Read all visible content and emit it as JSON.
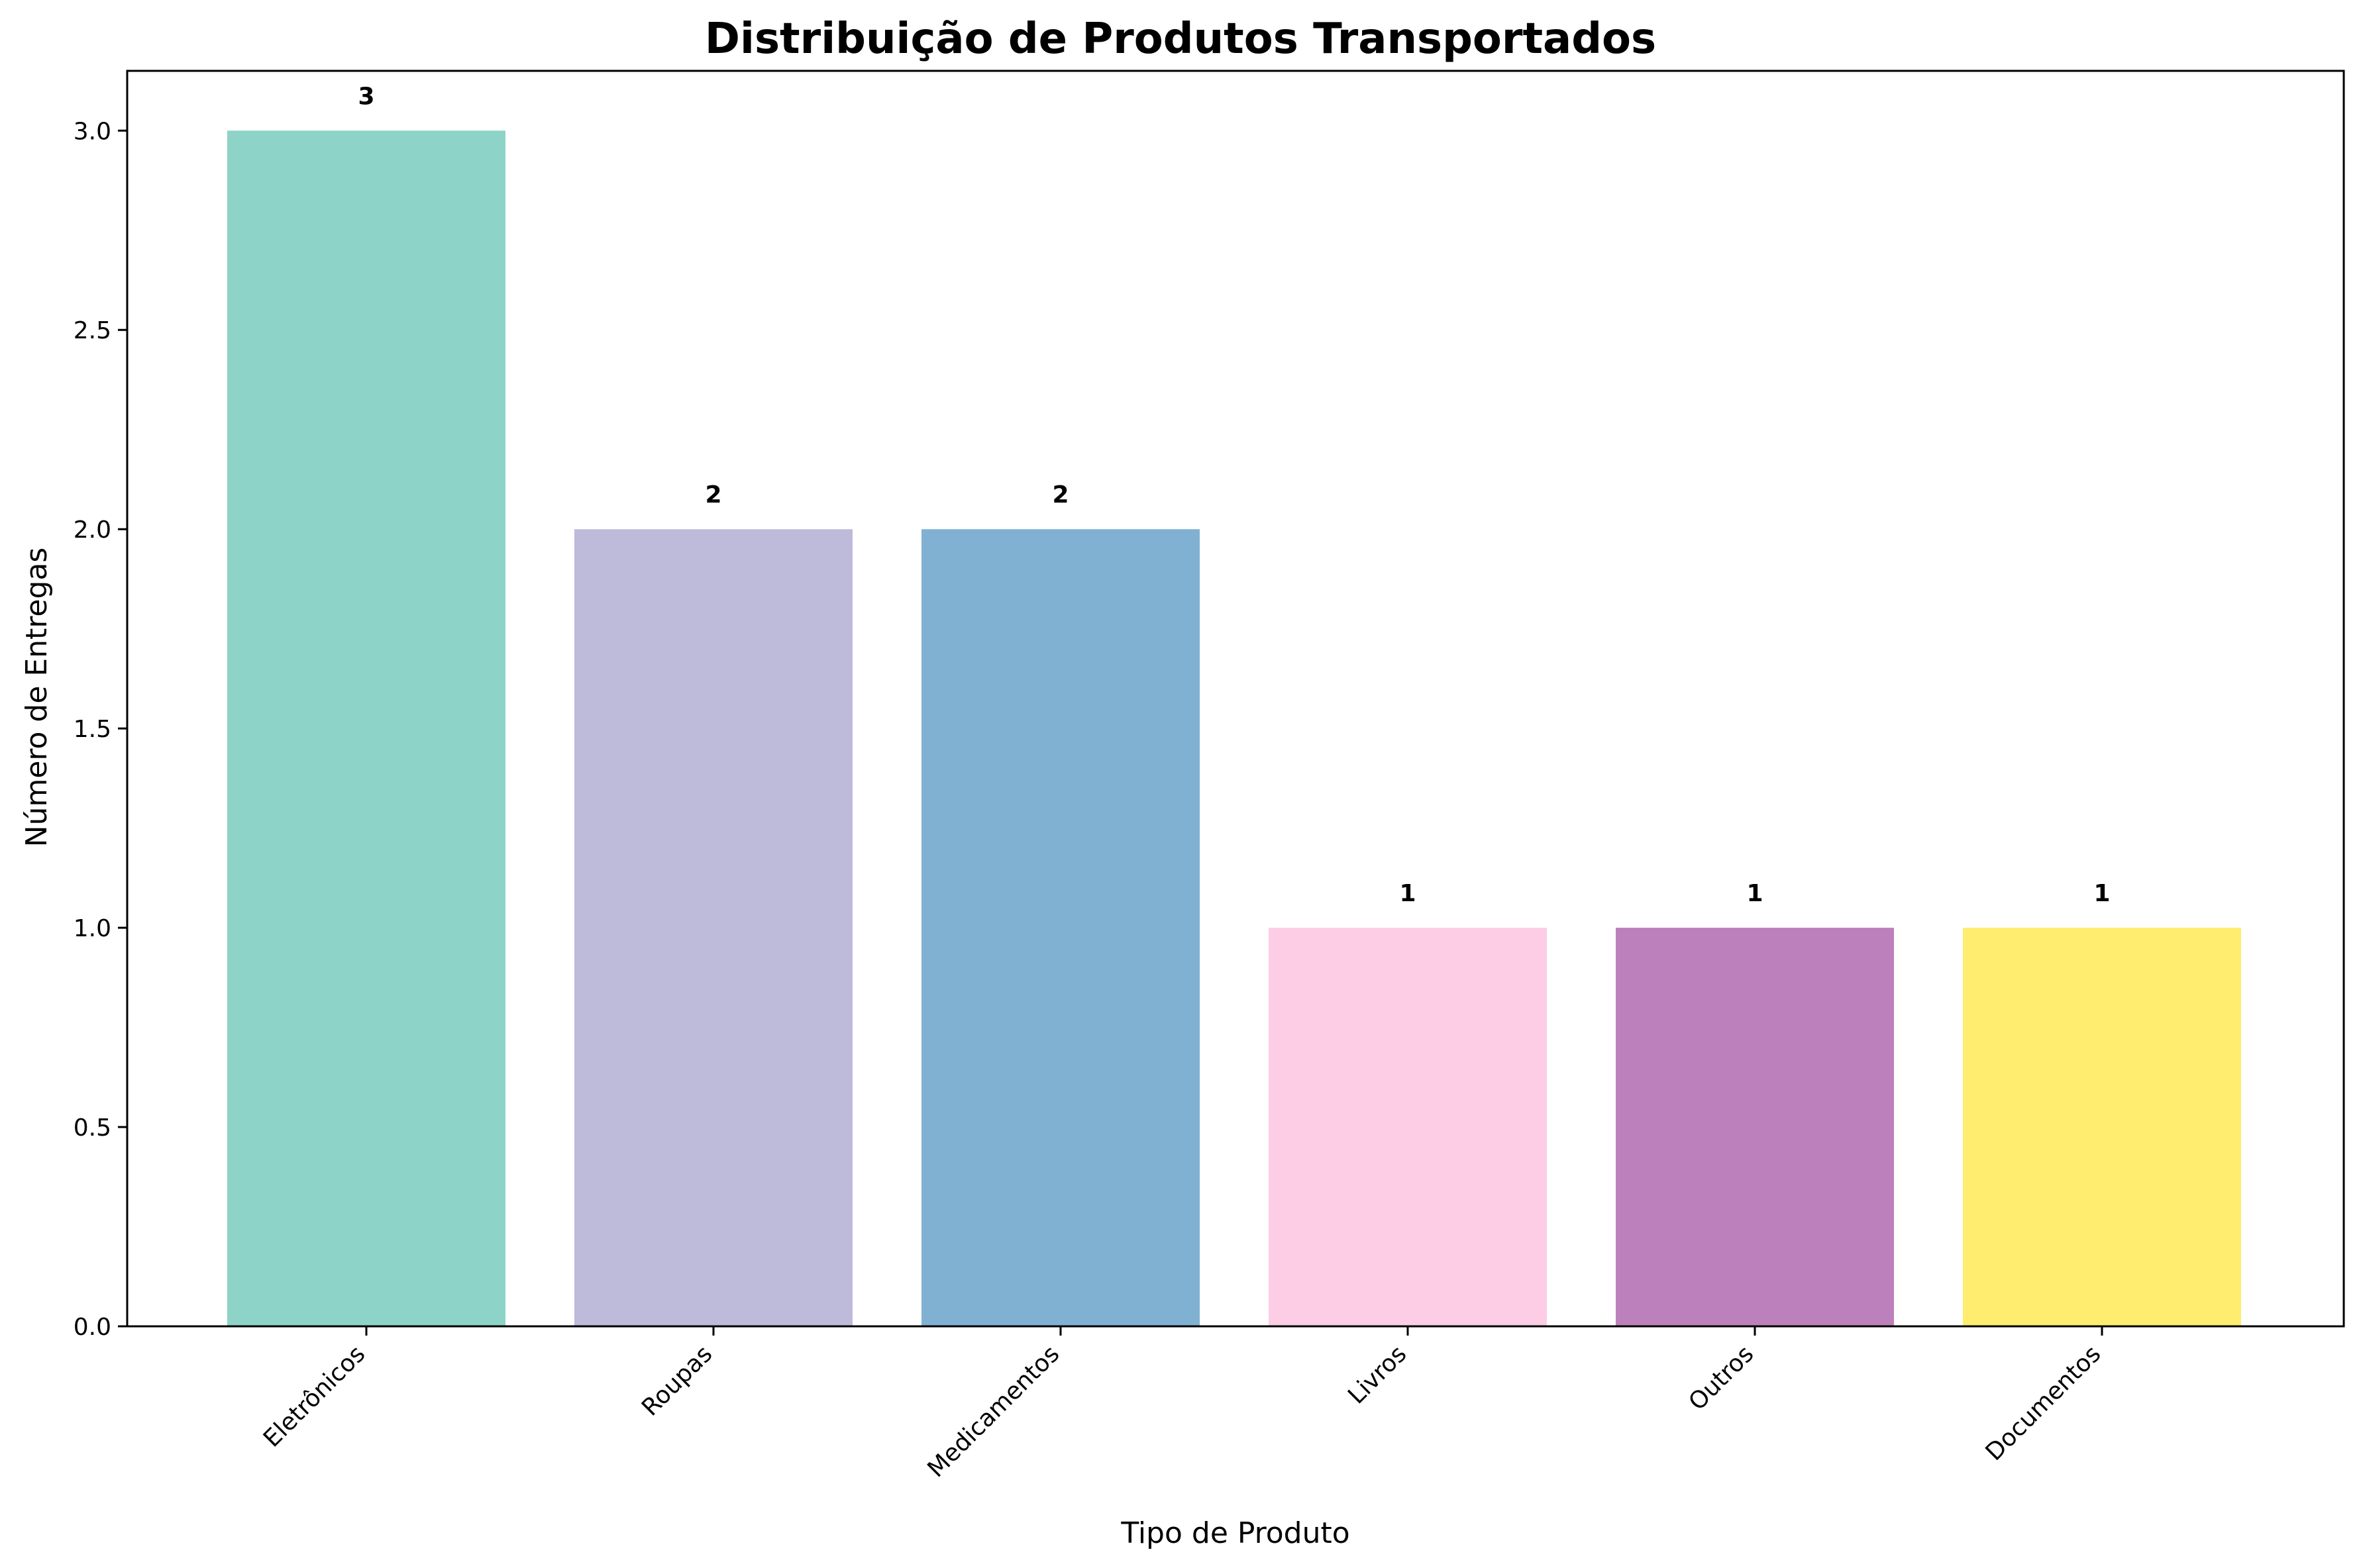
{
  "chart_data": {
    "type": "bar",
    "title": "Distribuição de Produtos Transportados",
    "xlabel": "Tipo de Produto",
    "ylabel": "Número de Entregas",
    "categories": [
      "Eletrônicos",
      "Roupas",
      "Medicamentos",
      "Livros",
      "Outros",
      "Documentos"
    ],
    "values": [
      3,
      2,
      2,
      1,
      1,
      1
    ],
    "data_labels": [
      "3",
      "2",
      "2",
      "1",
      "1",
      "1"
    ],
    "colors": [
      "#8dd3c7",
      "#bebada",
      "#80b1d3",
      "#fccde5",
      "#bc80bd",
      "#ffed6f"
    ],
    "ylim": [
      0,
      3.15
    ],
    "yticks": [
      0.0,
      0.5,
      1.0,
      1.5,
      2.0,
      2.5,
      3.0
    ],
    "ytick_labels": [
      "0.0",
      "0.5",
      "1.0",
      "1.5",
      "2.0",
      "2.5",
      "3.0"
    ],
    "grid": false,
    "legend": "none"
  }
}
